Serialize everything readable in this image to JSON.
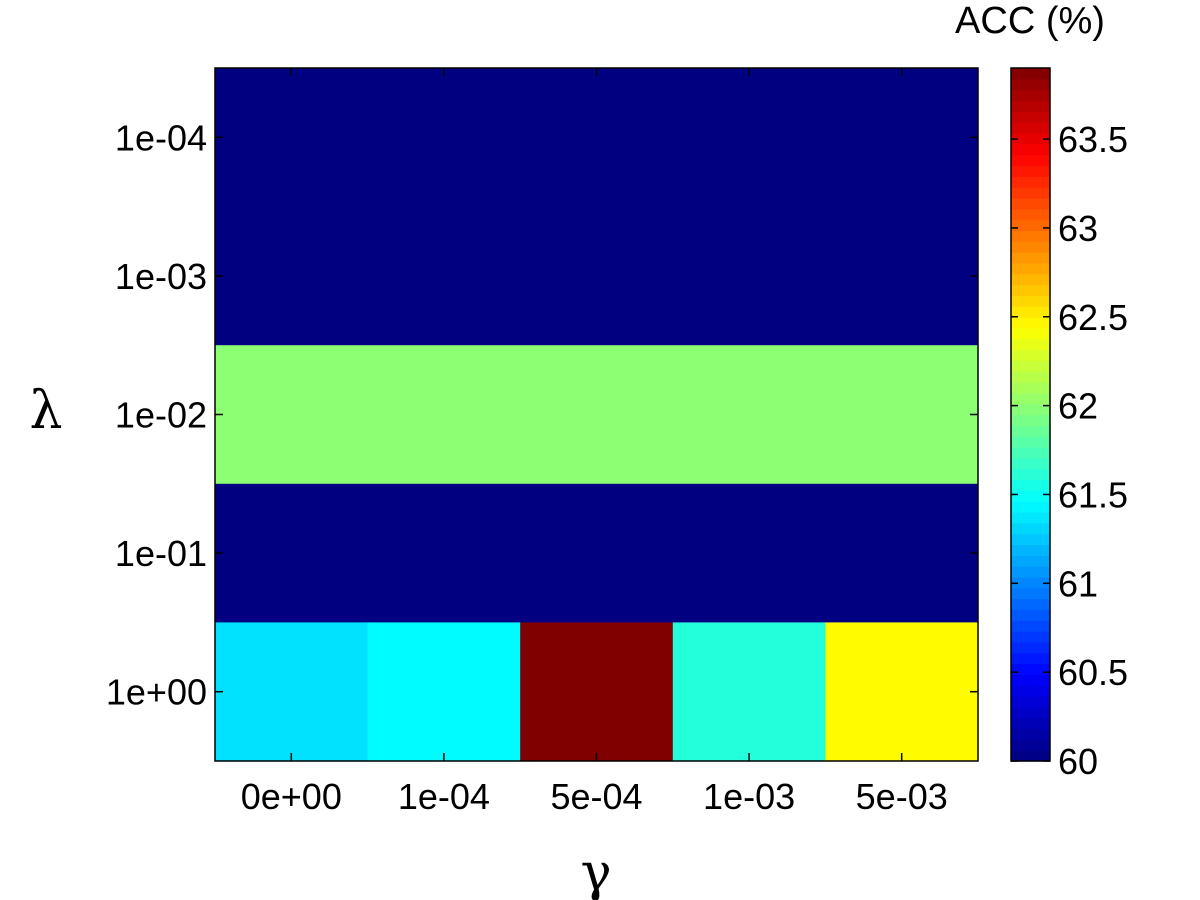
{
  "chart_data": {
    "type": "heatmap",
    "x": {
      "label": "γ",
      "categories": [
        "0e+00",
        "1e-04",
        "5e-04",
        "1e-03",
        "5e-03"
      ]
    },
    "y": {
      "label": "λ",
      "categories": [
        "1e-04",
        "1e-03",
        "1e-02",
        "1e-01",
        "1e+00"
      ]
    },
    "values": [
      [
        60.0,
        60.0,
        60.0,
        60.0,
        60.0
      ],
      [
        60.0,
        60.0,
        60.0,
        60.0,
        60.0
      ],
      [
        62.0,
        62.0,
        62.0,
        62.0,
        62.0
      ],
      [
        60.0,
        60.0,
        60.0,
        60.0,
        60.0
      ],
      [
        61.35,
        61.45,
        63.9,
        61.6,
        62.45
      ]
    ],
    "colorbar": {
      "title": "ACC (%)",
      "colormap": "jet",
      "range": [
        60,
        63.9
      ],
      "ticks": [
        60,
        60.5,
        61,
        61.5,
        62,
        62.5,
        63,
        63.5
      ],
      "tick_labels": [
        "60",
        "60.5",
        "61",
        "61.5",
        "62",
        "62.5",
        "63",
        "63.5"
      ]
    },
    "grid": false
  }
}
